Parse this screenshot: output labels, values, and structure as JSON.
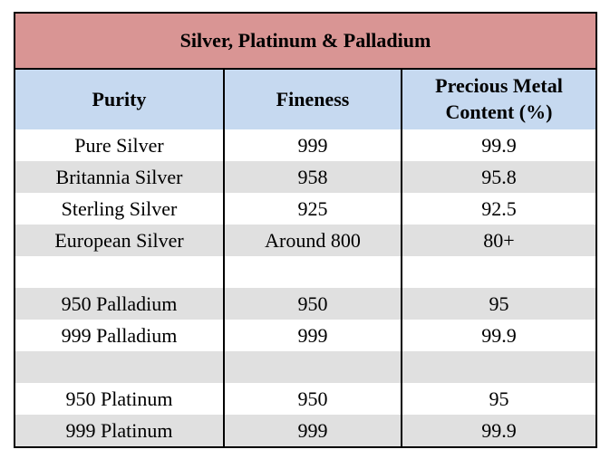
{
  "title": "Silver, Platinum & Palladium",
  "headers": {
    "purity": "Purity",
    "fineness": "Fineness",
    "content_line1": "Precious Metal",
    "content_line2": "Content (%)"
  },
  "rows": [
    {
      "purity": "Pure Silver",
      "fineness": "999",
      "content": "99.9"
    },
    {
      "purity": "Britannia Silver",
      "fineness": "958",
      "content": "95.8"
    },
    {
      "purity": "Sterling Silver",
      "fineness": "925",
      "content": "92.5"
    },
    {
      "purity": "European Silver",
      "fineness": "Around 800",
      "content": "80+"
    },
    {
      "purity": "",
      "fineness": "",
      "content": ""
    },
    {
      "purity": "950 Palladium",
      "fineness": "950",
      "content": "95"
    },
    {
      "purity": "999 Palladium",
      "fineness": "999",
      "content": "99.9"
    },
    {
      "purity": "",
      "fineness": "",
      "content": ""
    },
    {
      "purity": "950 Platinum",
      "fineness": "950",
      "content": "95"
    },
    {
      "purity": "999 Platinum",
      "fineness": "999",
      "content": "99.9"
    }
  ],
  "colors": {
    "title_bg": "#d99594",
    "header_bg": "#c6d9f0",
    "shade_row_bg": "#e0e0e0",
    "border": "#000000"
  }
}
